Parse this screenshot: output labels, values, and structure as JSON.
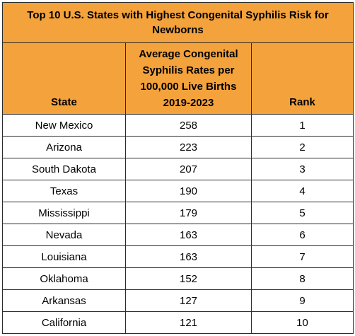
{
  "chart_data": {
    "type": "table",
    "title": "Top 10 U.S. States with Highest Congenital Syphilis Risk for Newborns",
    "columns": [
      "State",
      "Average Congenital Syphilis Rates per 100,000 Live Births 2019-2023",
      "Rank"
    ],
    "rows": [
      {
        "state": "New Mexico",
        "rate": "258",
        "rank": "1"
      },
      {
        "state": "Arizona",
        "rate": "223",
        "rank": "2"
      },
      {
        "state": "South Dakota",
        "rate": "207",
        "rank": "3"
      },
      {
        "state": "Texas",
        "rate": "190",
        "rank": "4"
      },
      {
        "state": "Mississippi",
        "rate": "179",
        "rank": "5"
      },
      {
        "state": "Nevada",
        "rate": "163",
        "rank": "6"
      },
      {
        "state": "Louisiana",
        "rate": "163",
        "rank": "7"
      },
      {
        "state": "Oklahoma",
        "rate": "152",
        "rank": "8"
      },
      {
        "state": "Arkansas",
        "rate": "127",
        "rank": "9"
      },
      {
        "state": "California",
        "rate": "121",
        "rank": "10"
      }
    ]
  }
}
